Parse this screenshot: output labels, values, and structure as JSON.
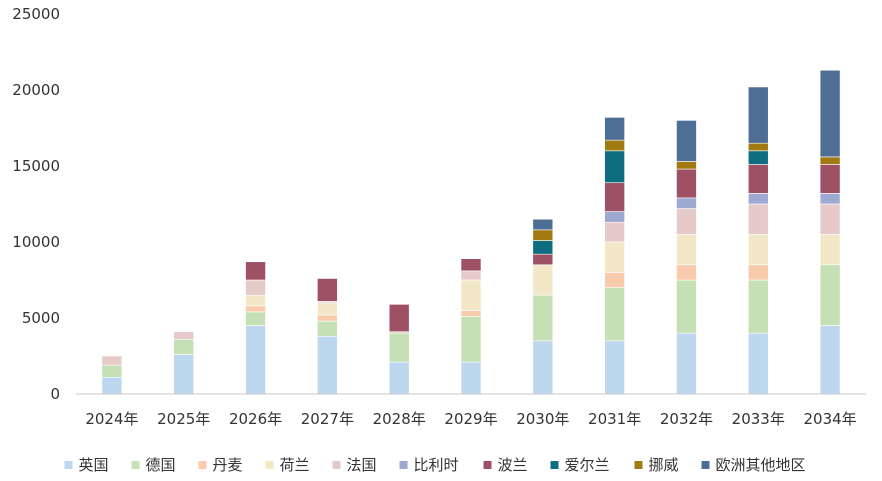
{
  "chart_data": {
    "type": "bar",
    "stacked": true,
    "categories": [
      "2024年",
      "2025年",
      "2026年",
      "2027年",
      "2028年",
      "2029年",
      "2030年",
      "2031年",
      "2032年",
      "2033年",
      "2034年"
    ],
    "ylim": [
      0,
      25000
    ],
    "yticks": [
      0,
      5000,
      10000,
      15000,
      20000,
      25000
    ],
    "grid": false,
    "legend": "bottom",
    "series": [
      {
        "name": "英国",
        "color": "#BDD7EE",
        "values": [
          1100,
          2600,
          4500,
          3800,
          2100,
          2100,
          3500,
          3500,
          4000,
          4000,
          4500
        ]
      },
      {
        "name": "德国",
        "color": "#C5E0B4",
        "values": [
          800,
          1000,
          900,
          1000,
          1900,
          3000,
          3000,
          3500,
          3500,
          3500,
          4000
        ]
      },
      {
        "name": "丹麦",
        "color": "#F8CBAD",
        "values": [
          0,
          0,
          400,
          400,
          0,
          400,
          0,
          1000,
          1000,
          1000,
          0
        ]
      },
      {
        "name": "荷兰",
        "color": "#F2E8C8",
        "values": [
          0,
          0,
          700,
          800,
          0,
          2000,
          2000,
          2000,
          2000,
          2000,
          2000
        ]
      },
      {
        "name": "法国",
        "color": "#E6CACA",
        "values": [
          600,
          500,
          1000,
          100,
          100,
          600,
          0,
          1300,
          1700,
          2000,
          2000
        ]
      },
      {
        "name": "比利时",
        "color": "#9DA9D0",
        "values": [
          0,
          0,
          0,
          0,
          0,
          0,
          0,
          700,
          700,
          700,
          700
        ]
      },
      {
        "name": "波兰",
        "color": "#9E5064",
        "values": [
          0,
          0,
          1200,
          1500,
          1800,
          800,
          700,
          1900,
          1900,
          1900,
          1900
        ]
      },
      {
        "name": "爱尔兰",
        "color": "#0E6E80",
        "values": [
          0,
          0,
          0,
          0,
          0,
          0,
          900,
          2100,
          0,
          900,
          0
        ]
      },
      {
        "name": "挪威",
        "color": "#A27A12",
        "values": [
          0,
          0,
          0,
          0,
          0,
          0,
          700,
          700,
          500,
          500,
          500
        ]
      },
      {
        "name": "欧洲其他地区",
        "color": "#4F6E96",
        "values": [
          0,
          0,
          0,
          0,
          0,
          0,
          700,
          1500,
          2700,
          3700,
          5700
        ]
      }
    ]
  }
}
